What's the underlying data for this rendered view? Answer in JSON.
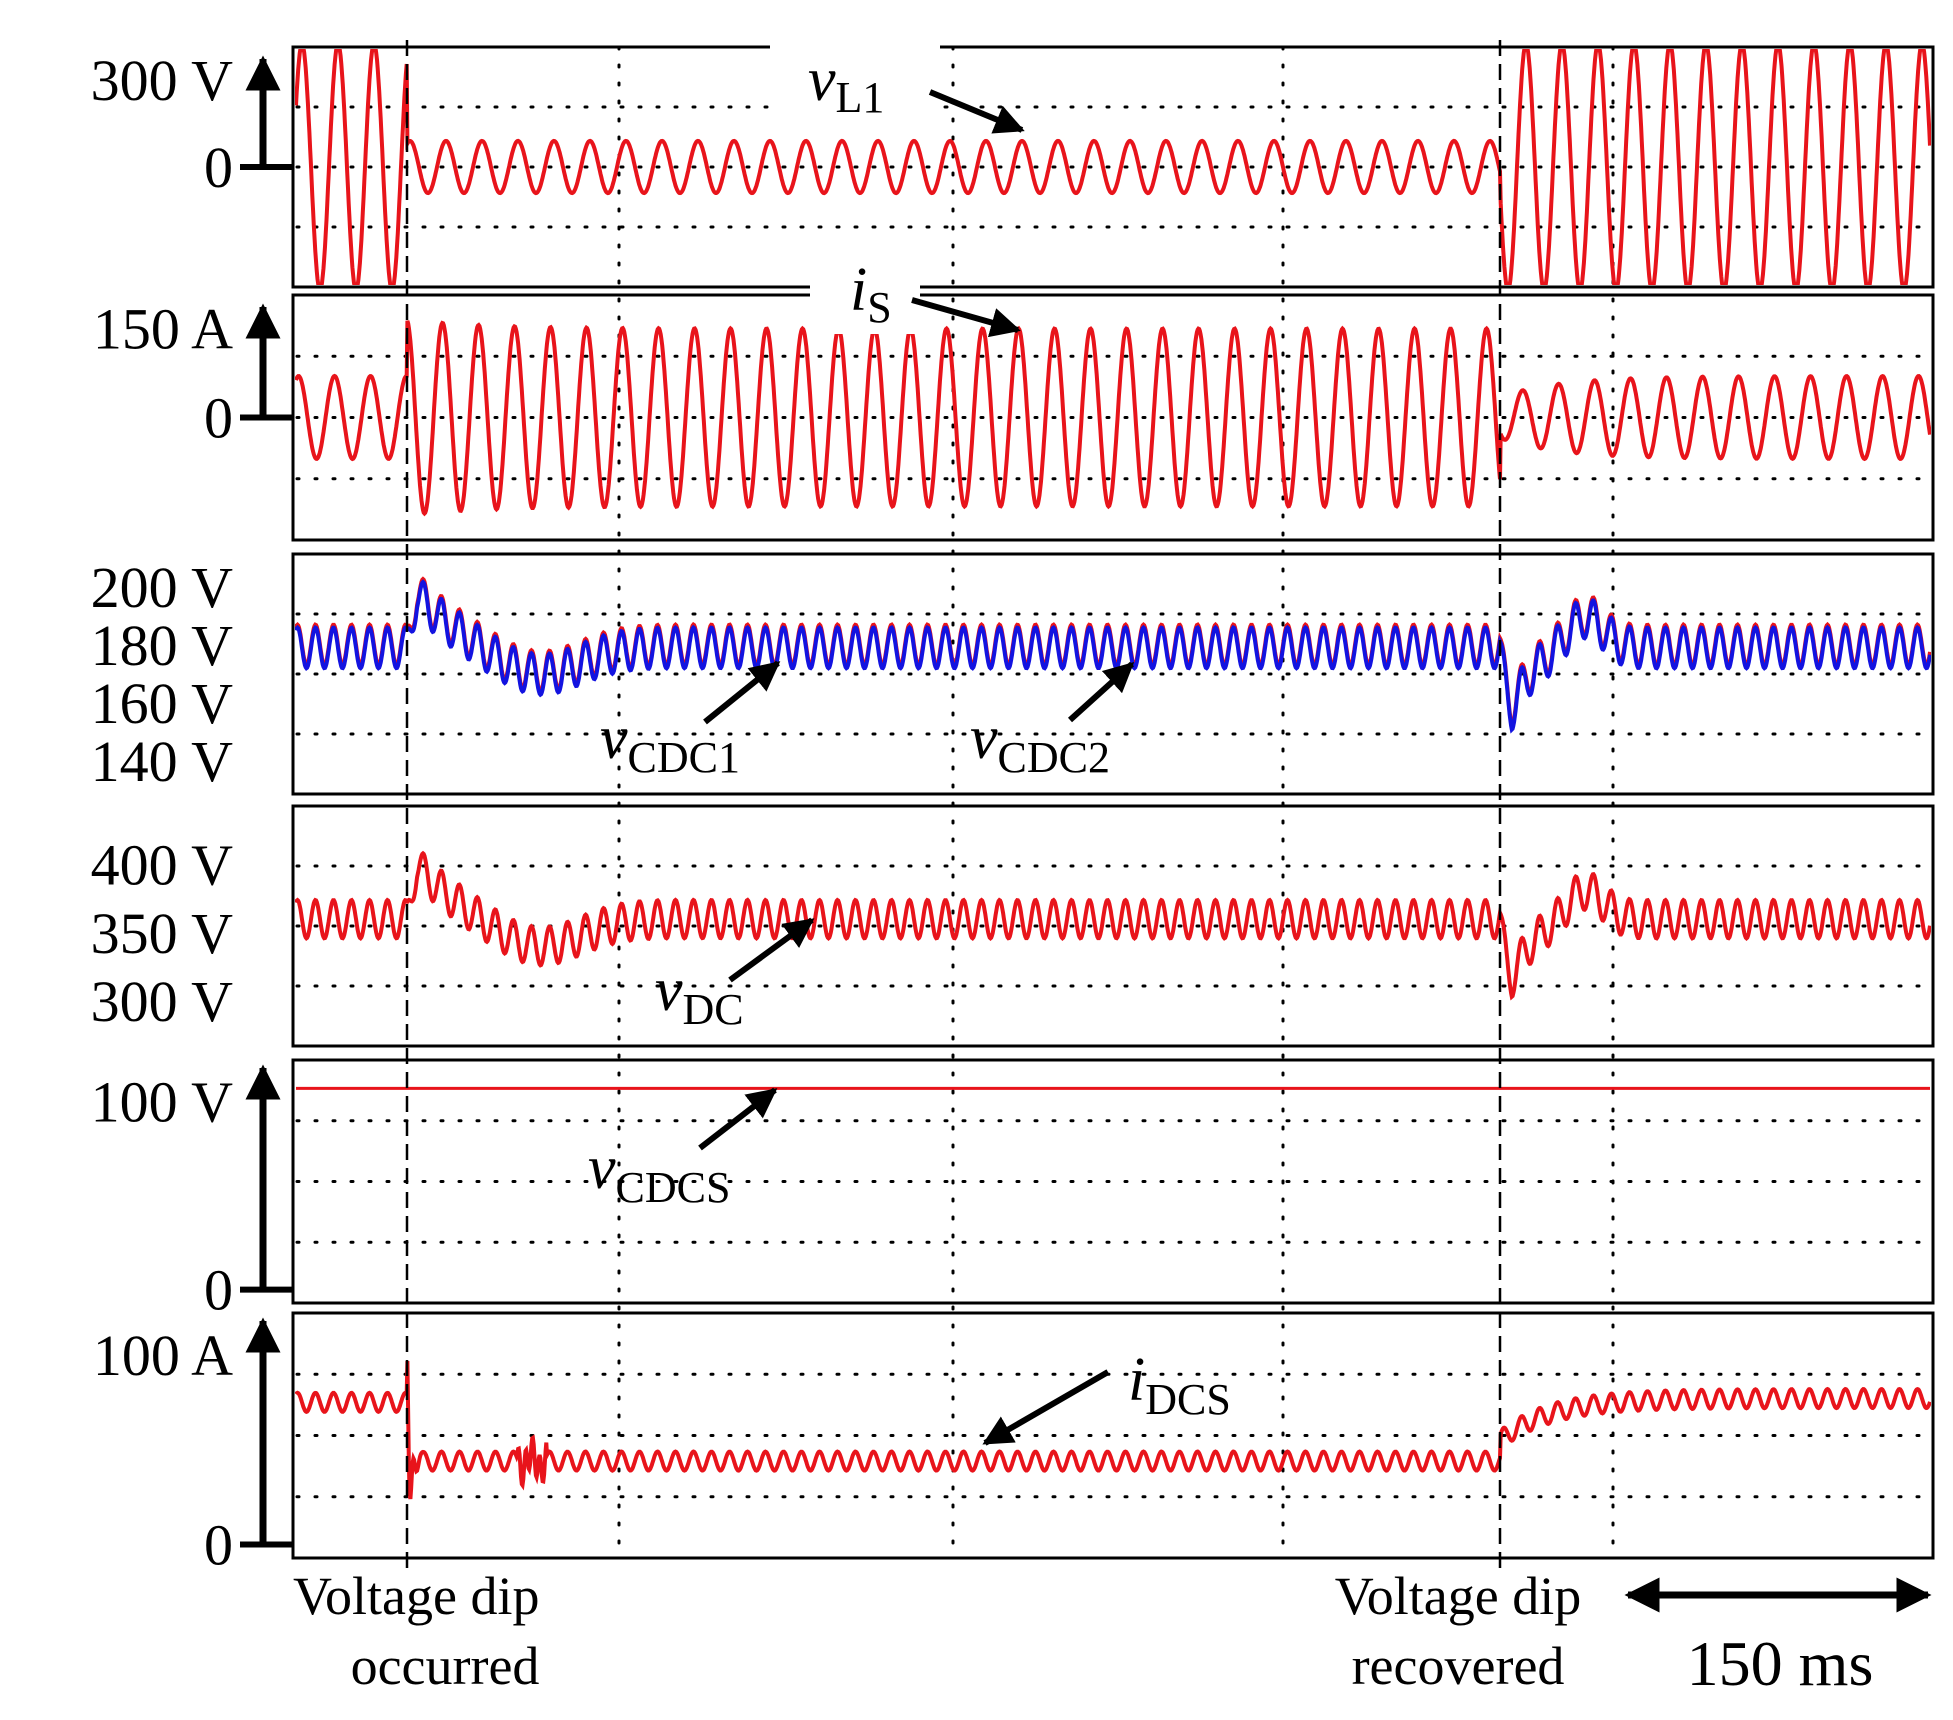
{
  "chart_data": [
    {
      "type": "line",
      "ylim": [
        -400,
        400
      ],
      "ticks": [
        {
          "value": 300,
          "label": "300 V"
        },
        {
          "value": 0,
          "label": "0"
        }
      ],
      "series": [
        {
          "name_base": "v",
          "name_sub": "L1",
          "color": "#e8141b",
          "amplitude_before": 425,
          "amplitude_during": 90,
          "amplitude_after": 425,
          "offset": 0
        }
      ]
    },
    {
      "type": "line",
      "ylim": [
        -200,
        200
      ],
      "ticks": [
        {
          "value": 150,
          "label": "150 A"
        },
        {
          "value": 0,
          "label": "0"
        }
      ],
      "series": [
        {
          "name_base": "i",
          "name_sub": "S",
          "color": "#e8141b",
          "amplitude_before": 70,
          "amplitude_during": 150,
          "amplitude_after": 70,
          "offset": 0
        }
      ]
    },
    {
      "type": "line",
      "ylim": [
        130,
        210
      ],
      "ticks": [
        {
          "value": 200,
          "label": "200 V"
        },
        {
          "value": 180,
          "label": "180 V"
        },
        {
          "value": 160,
          "label": "160 V"
        },
        {
          "value": 140,
          "label": "140 V"
        }
      ],
      "series": [
        {
          "name_base": "v",
          "name_sub": "CDC1",
          "color": "#e8141b",
          "mean": 180,
          "ripple": 7,
          "surge_peak": 203,
          "sag_min": 143
        },
        {
          "name_base": "v",
          "name_sub": "CDC2",
          "color": "#1313e0",
          "mean": 179,
          "ripple": 7,
          "surge_peak": 202,
          "sag_min": 142
        }
      ]
    },
    {
      "type": "line",
      "ylim": [
        270,
        440
      ],
      "ticks": [
        {
          "value": 400,
          "label": "400 V"
        },
        {
          "value": 350,
          "label": "350 V"
        },
        {
          "value": 300,
          "label": "300 V"
        }
      ],
      "series": [
        {
          "name_base": "v",
          "name_sub": "DC",
          "color": "#e8141b",
          "mean": 360,
          "ripple": 14,
          "surge_peak": 410,
          "sag_min": 285
        }
      ]
    },
    {
      "type": "line",
      "ylim": [
        -5,
        120
      ],
      "ticks": [
        {
          "value": 100,
          "label": "100 V"
        },
        {
          "value": 0,
          "label": "0"
        }
      ],
      "series": [
        {
          "name_base": "v",
          "name_sub": "CDCS",
          "color": "#e8141b",
          "value": 107
        }
      ]
    },
    {
      "type": "line",
      "ylim": [
        -5,
        120
      ],
      "ticks": [
        {
          "value": 100,
          "label": "100 A"
        },
        {
          "value": 0,
          "label": "0"
        }
      ],
      "series": [
        {
          "name_base": "i",
          "name_sub": "DCS",
          "color": "#e8141b",
          "mean_before": 75,
          "mean_during": 44,
          "mean_after": 77,
          "ripple": 5
        }
      ]
    }
  ],
  "markers": {
    "dip_occurred": [
      "Voltage dip",
      "occurred"
    ],
    "dip_recovered": [
      "Voltage dip",
      "recovered"
    ]
  },
  "timescale": {
    "label": "150 ms"
  }
}
